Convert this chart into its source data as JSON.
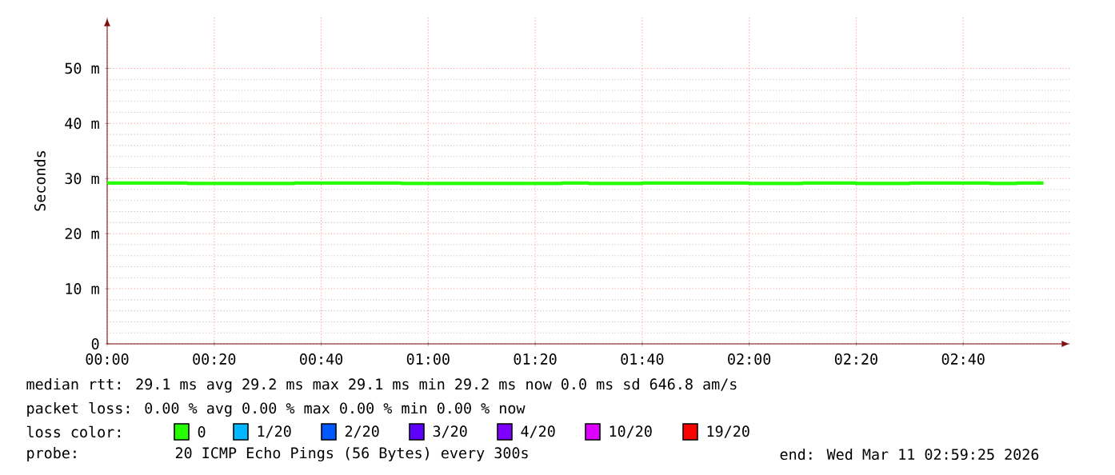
{
  "chart_data": {
    "type": "step",
    "ylabel": "Seconds",
    "x": [
      0,
      0.25,
      0.5833,
      0.9167,
      1.4167,
      1.5,
      1.6667,
      2,
      2.1667,
      2.3333,
      2.5,
      2.75,
      2.8333,
      2.9167
    ],
    "series": [
      {
        "name": "0",
        "color": "#26ff00",
        "values": [
          29.2,
          29.1,
          29.2,
          29.1,
          29.2,
          29.1,
          29.2,
          29.1,
          29.2,
          29.1,
          29.2,
          29.1,
          29.2,
          29.2
        ]
      },
      {
        "name": "1/20",
        "color": "#00b8ff",
        "values": [
          null,
          null,
          null,
          null,
          null,
          null,
          null,
          null,
          null,
          null,
          null,
          null,
          null,
          null
        ]
      },
      {
        "name": "2/20",
        "color": "#0059ff",
        "values": [
          null,
          null,
          null,
          null,
          null,
          null,
          null,
          null,
          null,
          null,
          null,
          null,
          null,
          null
        ]
      },
      {
        "name": "3/20",
        "color": "#5e00ff",
        "values": [
          null,
          null,
          null,
          null,
          null,
          null,
          null,
          null,
          null,
          null,
          null,
          null,
          null,
          null
        ]
      },
      {
        "name": "4/20",
        "color": "#7e00ff",
        "values": [
          null,
          null,
          null,
          null,
          null,
          null,
          null,
          null,
          null,
          null,
          null,
          null,
          null,
          null
        ]
      },
      {
        "name": "10/20",
        "color": "#dd00ff",
        "values": [
          null,
          null,
          null,
          null,
          null,
          null,
          null,
          null,
          null,
          null,
          null,
          null,
          null,
          null
        ]
      },
      {
        "name": "19/20",
        "color": "#ff0000",
        "values": [
          null,
          null,
          null,
          null,
          null,
          null,
          null,
          null,
          null,
          null,
          null,
          null,
          null,
          null
        ]
      }
    ],
    "legend": "bottom",
    "legend_title": "loss color:",
    "xlim": [
      0,
      3
    ],
    "ylim": [
      0,
      59.2
    ],
    "xticks": [
      {
        "value": 0,
        "label": "00:00"
      },
      {
        "value": 0.3333,
        "label": "00:20"
      },
      {
        "value": 0.6667,
        "label": "00:40"
      },
      {
        "value": 1,
        "label": "01:00"
      },
      {
        "value": 1.3333,
        "label": "01:20"
      },
      {
        "value": 1.6667,
        "label": "01:40"
      },
      {
        "value": 2,
        "label": "02:00"
      },
      {
        "value": 2.3333,
        "label": "02:20"
      },
      {
        "value": 2.6667,
        "label": "02:40"
      }
    ],
    "yticks": [
      0,
      {
        "value": 10,
        "label": "10 m"
      },
      {
        "value": 20,
        "label": "20 m"
      },
      {
        "value": 30,
        "label": "30 m"
      },
      {
        "value": 40,
        "label": "40 m"
      },
      {
        "value": 50,
        "label": "50 m"
      }
    ],
    "grid": true,
    "annotations": [
      "median rtt: 29.1 ms avg 29.2 ms max 29.1 ms min 29.2 ms now 0.0 ms sd 646.8 am/s",
      "packet loss: 0.00 % avg 0.00 % max 0.00 % min 0.00 % now",
      "probe:",
      "20 ICMP Echo Pings (56 Bytes) every 300s",
      "end: Wed Mar 11 02:59:25 2026"
    ]
  }
}
